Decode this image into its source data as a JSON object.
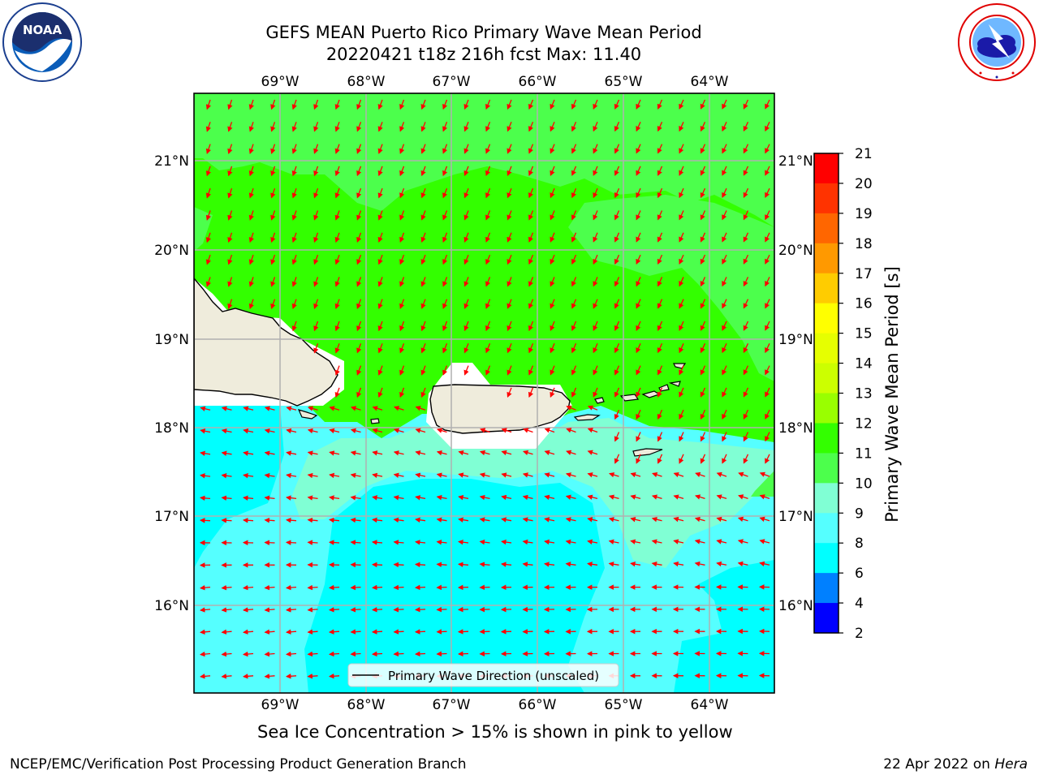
{
  "header": {
    "title_line1": "GEFS MEAN Puerto Rico Primary Wave Mean Period",
    "title_line2": "20220421 t18z 216h fcst   Max: 11.40"
  },
  "logos": {
    "left": {
      "name": "noaa-logo",
      "text": "NOAA",
      "ring_text": "NATIONAL OCEANIC AND ATMOSPHERIC ADMINISTRATION · U.S. DEPARTMENT OF COMMERCE"
    },
    "right": {
      "name": "nws-logo",
      "ring_text": "NATIONAL WEATHER SERVICE"
    }
  },
  "map": {
    "lon_labels": [
      "69°W",
      "68°W",
      "67°W",
      "66°W",
      "65°W",
      "64°W"
    ],
    "lat_labels": [
      "21°N",
      "20°N",
      "19°N",
      "18°N",
      "17°N",
      "16°N"
    ],
    "legend_label": "Primary Wave Direction (unscaled)",
    "colors": {
      "green_high": "#33ff00",
      "green_low": "#4cff4c",
      "aqua_pale": "#80ffd4",
      "cyan_light": "#55ffff",
      "cyan": "#00ffff",
      "land": "#efecdc",
      "arrow": "#ff0000",
      "grid": "#b0b0b0"
    }
  },
  "colorbar": {
    "label": "Primary Wave Mean Period [s]",
    "ticks": [
      "21",
      "20",
      "19",
      "18",
      "17",
      "16",
      "15",
      "14",
      "13",
      "12",
      "11",
      "10",
      "9",
      "8",
      "6",
      "4",
      "2"
    ],
    "colors": [
      "#ff0000",
      "#ff3300",
      "#ff6600",
      "#ff9900",
      "#ffcc00",
      "#ffff00",
      "#e6ff00",
      "#ccff00",
      "#99ff00",
      "#33ff00",
      "#4cff4c",
      "#80ffd4",
      "#55ffff",
      "#00ffff",
      "#0080ff",
      "#0000ff"
    ]
  },
  "notes": {
    "sea_ice": "Sea Ice Concentration > 15% is shown in pink to yellow"
  },
  "footer": {
    "left": "NCEP/EMC/Verification Post Processing Product Generation Branch",
    "right_date": "22 Apr 2022 on ",
    "right_host": "Hera"
  }
}
